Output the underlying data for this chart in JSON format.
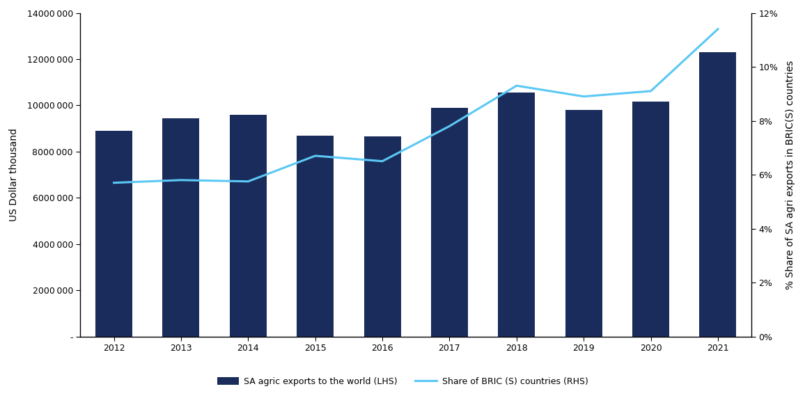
{
  "years": [
    2012,
    2013,
    2014,
    2015,
    2016,
    2017,
    2018,
    2019,
    2020,
    2021
  ],
  "bar_values": [
    8900000,
    9450000,
    9600000,
    8700000,
    8650000,
    9900000,
    10550000,
    9800000,
    10150000,
    12300000
  ],
  "line_values": [
    5.7,
    5.8,
    5.75,
    6.7,
    6.5,
    7.8,
    9.3,
    8.9,
    9.1,
    11.4
  ],
  "bar_color": "#1a2c5b",
  "line_color": "#5bc8f5",
  "ylim_left": [
    0,
    14000000
  ],
  "ylim_right": [
    0,
    12
  ],
  "yticks_left": [
    0,
    2000000,
    4000000,
    6000000,
    8000000,
    10000000,
    12000000,
    14000000
  ],
  "yticks_right": [
    0,
    2,
    4,
    6,
    8,
    10,
    12
  ],
  "ylabel_left": "US Dollar thousand",
  "ylabel_right": "% Share of SA agri exports in BRIC(S) countries",
  "legend_bar": "SA agric exports to the world (LHS)",
  "legend_line": "Share of BRIC (S) countries (RHS)",
  "background_color": "#ffffff",
  "line_width": 2.2,
  "bar_width": 0.55,
  "font_family": "Arial",
  "tick_fontsize": 9,
  "label_fontsize": 10,
  "legend_fontsize": 9
}
